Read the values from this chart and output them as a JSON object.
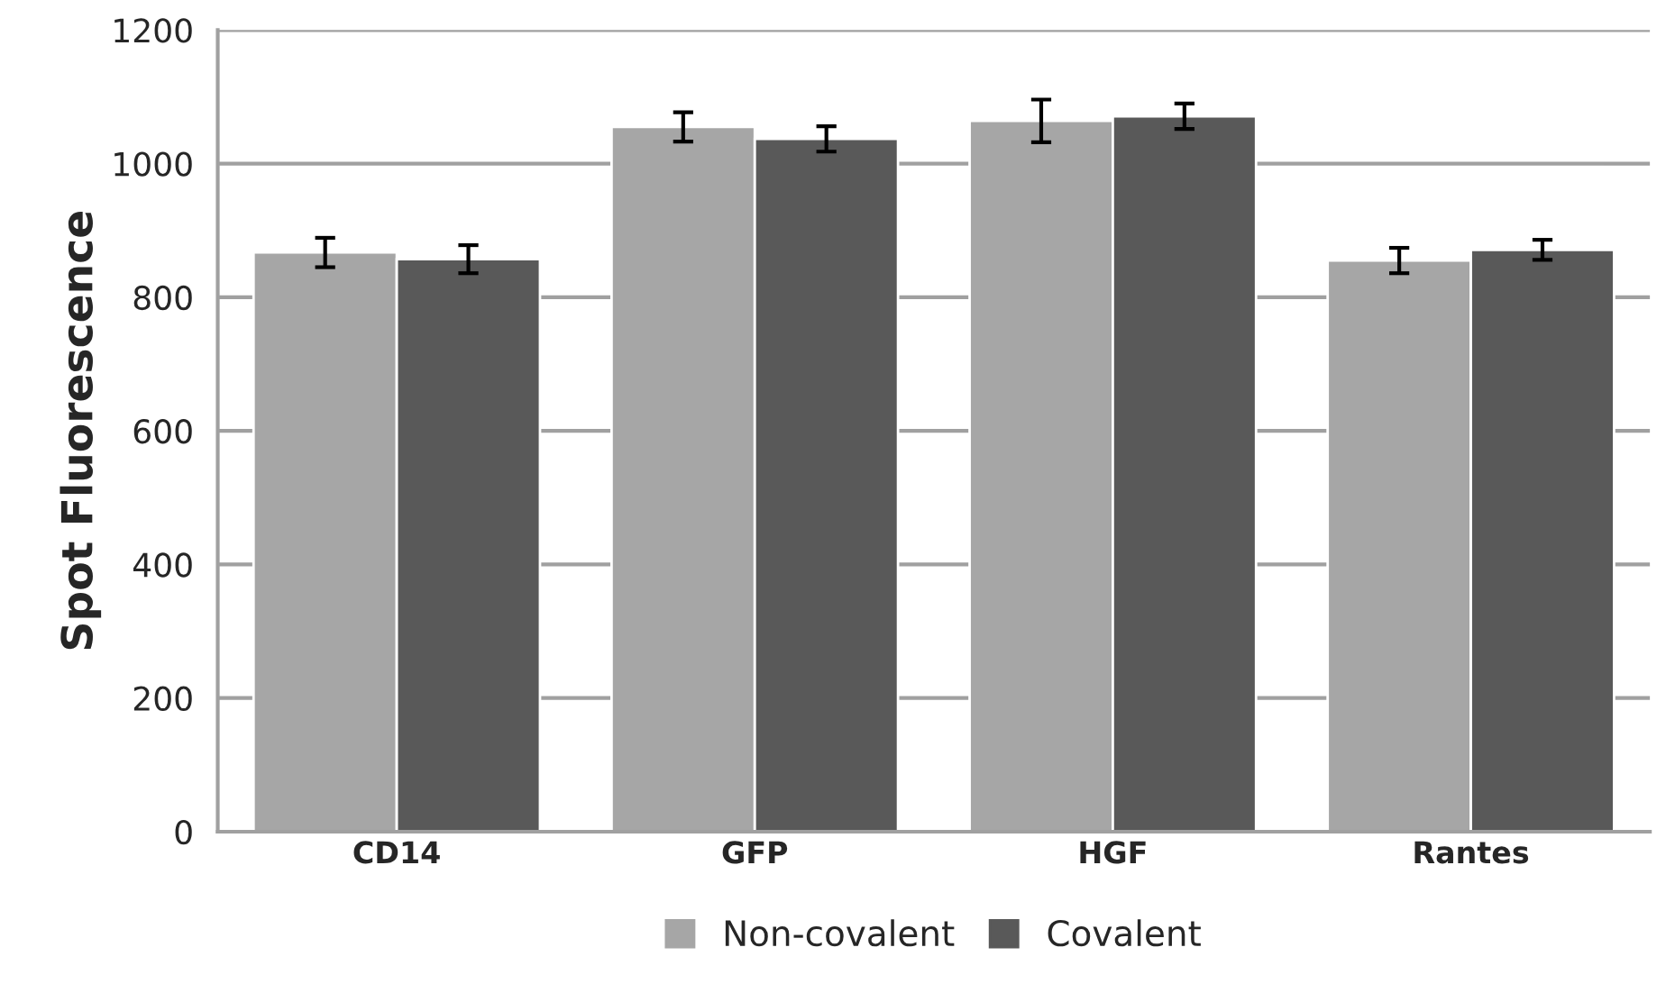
{
  "chart_data": {
    "type": "bar",
    "ylabel": "Spot Fluorescence",
    "categories": [
      "CD14",
      "GFP",
      "HGF",
      "Rantes"
    ],
    "series": [
      {
        "name": "Non-covalent",
        "color": "#a6a6a6",
        "values": [
          867,
          1055,
          1064,
          855
        ],
        "errors": [
          22,
          22,
          32,
          19
        ]
      },
      {
        "name": "Covalent",
        "color": "#595959",
        "values": [
          857,
          1037,
          1071,
          871
        ],
        "errors": [
          21,
          19,
          19,
          15
        ]
      }
    ],
    "ylim": [
      0,
      1200
    ],
    "yticks": [
      0,
      200,
      400,
      600,
      800,
      1000,
      1200
    ],
    "grid": "y",
    "legend": "bottom"
  }
}
